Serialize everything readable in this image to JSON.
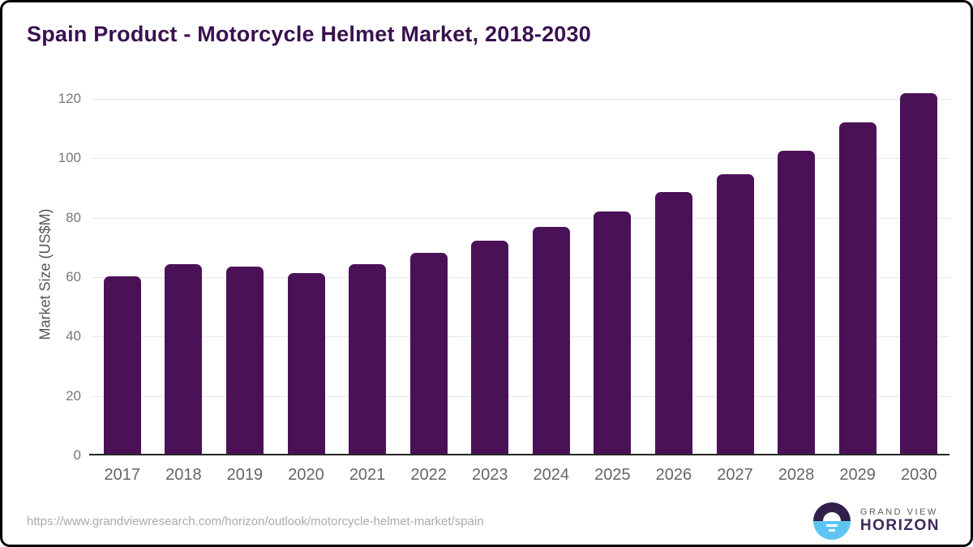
{
  "header": {
    "title": "Spain Product - Motorcycle Helmet Market, 2018-2030"
  },
  "chart_data": {
    "type": "bar",
    "title": "Spain Product - Motorcycle Helmet Market, 2018-2030",
    "categories": [
      "2017",
      "2018",
      "2019",
      "2020",
      "2021",
      "2022",
      "2023",
      "2024",
      "2025",
      "2026",
      "2027",
      "2028",
      "2029",
      "2030"
    ],
    "values": [
      60.3,
      64.3,
      63.6,
      61.5,
      64.5,
      68.3,
      72.4,
      77.0,
      82.2,
      88.6,
      94.7,
      102.5,
      112.1,
      121.9
    ],
    "xlabel": "",
    "ylabel": "Market Size (US$M)",
    "ylim": [
      0,
      120
    ],
    "yticks": [
      0,
      20,
      40,
      60,
      80,
      100,
      120
    ],
    "grid": "horizontal",
    "legend": "none",
    "bar_color": "#4b1157"
  },
  "footer": {
    "source_url": "https://www.grandviewresearch.com/horizon/outlook/motorcycle-helmet-market/spain",
    "logo": {
      "brand_top": "GRAND VIEW",
      "brand_bottom": "HORIZON",
      "circle_top_color": "#32204a",
      "circle_bottom_color": "#5ec5f2"
    }
  },
  "colors": {
    "title_text": "#3a1150",
    "bar_fill": "#4b1157",
    "gridline": "#e7e7e7",
    "axis_line": "#262626",
    "tick_text": "#777777",
    "url_text": "#ababab"
  }
}
